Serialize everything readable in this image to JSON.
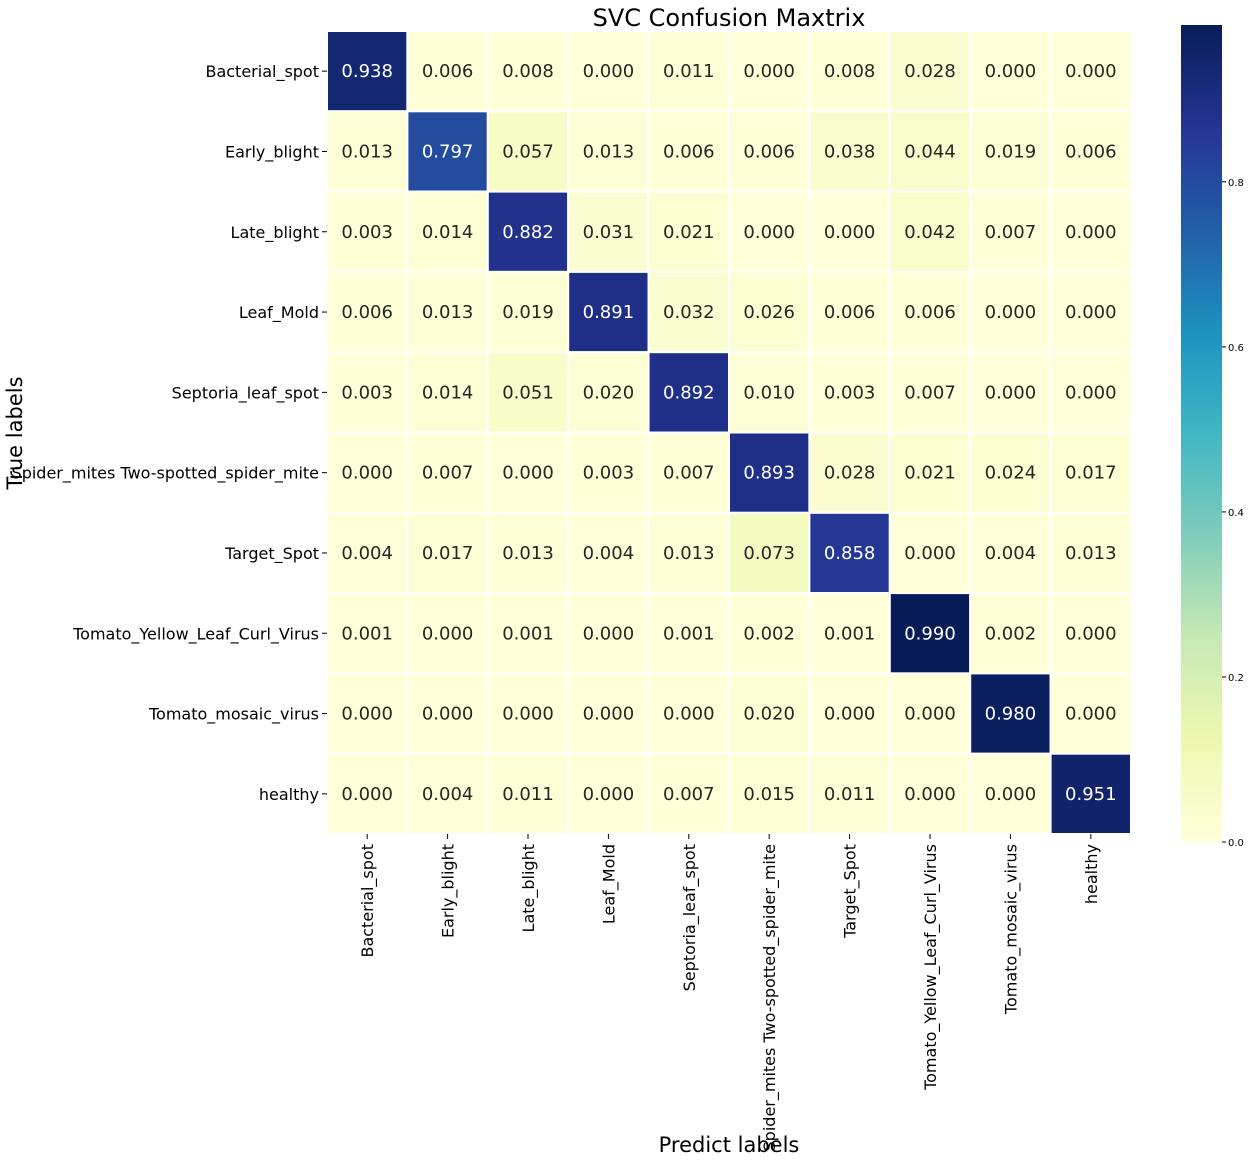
{
  "chart_data": {
    "type": "heatmap",
    "title": "SVC Confusion Maxtrix",
    "xlabel": "Predict labels",
    "ylabel": "True labels",
    "x_categories": [
      "Bacterial_spot",
      "Early_blight",
      "Late_blight",
      "Leaf_Mold",
      "Septoria_leaf_spot",
      "Spider_mites Two-spotted_spider_mite",
      "Target_Spot",
      "Tomato_Yellow_Leaf_Curl_Virus",
      "Tomato_mosaic_virus",
      "healthy"
    ],
    "y_categories": [
      "Bacterial_spot",
      "Early_blight",
      "Late_blight",
      "Leaf_Mold",
      "Septoria_leaf_spot",
      "Spider_mites Two-spotted_spider_mite",
      "Target_Spot",
      "Tomato_Yellow_Leaf_Curl_Virus",
      "Tomato_mosaic_virus",
      "healthy"
    ],
    "values": [
      [
        0.938,
        0.006,
        0.008,
        0.0,
        0.011,
        0.0,
        0.008,
        0.028,
        0.0,
        0.0
      ],
      [
        0.013,
        0.797,
        0.057,
        0.013,
        0.006,
        0.006,
        0.038,
        0.044,
        0.019,
        0.006
      ],
      [
        0.003,
        0.014,
        0.882,
        0.031,
        0.021,
        0.0,
        0.0,
        0.042,
        0.007,
        0.0
      ],
      [
        0.006,
        0.013,
        0.019,
        0.891,
        0.032,
        0.026,
        0.006,
        0.006,
        0.0,
        0.0
      ],
      [
        0.003,
        0.014,
        0.051,
        0.02,
        0.892,
        0.01,
        0.003,
        0.007,
        0.0,
        0.0
      ],
      [
        0.0,
        0.007,
        0.0,
        0.003,
        0.007,
        0.893,
        0.028,
        0.021,
        0.024,
        0.017
      ],
      [
        0.004,
        0.017,
        0.013,
        0.004,
        0.013,
        0.073,
        0.858,
        0.0,
        0.004,
        0.013
      ],
      [
        0.001,
        0.0,
        0.001,
        0.0,
        0.001,
        0.002,
        0.001,
        0.99,
        0.002,
        0.0
      ],
      [
        0.0,
        0.0,
        0.0,
        0.0,
        0.0,
        0.02,
        0.0,
        0.0,
        0.98,
        0.0
      ],
      [
        0.0,
        0.004,
        0.011,
        0.0,
        0.007,
        0.015,
        0.011,
        0.0,
        0.0,
        0.951
      ]
    ],
    "value_format": "0.000",
    "colormap": "YlGnBu",
    "colormap_stops": [
      "#ffffd9",
      "#edf8b1",
      "#c7e9b4",
      "#7fcdbb",
      "#41b6c4",
      "#1d91c0",
      "#225ea8",
      "#253494",
      "#081d58"
    ],
    "vmin": 0.0,
    "vmax": 0.99,
    "colorbar_ticks": [
      0.0,
      0.2,
      0.4,
      0.6,
      0.8
    ],
    "colorbar_tick_labels": [
      "0.0",
      "0.2",
      "0.4",
      "0.6",
      "0.8"
    ],
    "grid_lines": true,
    "grid_line_color": "#ffffff"
  }
}
